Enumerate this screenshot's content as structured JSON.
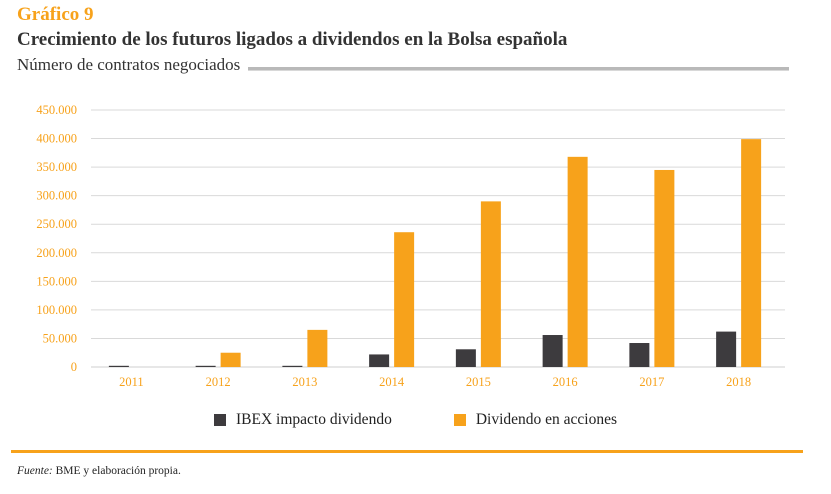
{
  "header": {
    "kicker": "Gráfico 9",
    "title": "Crecimiento de los futuros ligados a dividendos en la Bolsa española",
    "subtitle": "Número de contratos negociados"
  },
  "colors": {
    "accent": "#f7a21b",
    "ibex": "#3d3b3e",
    "acciones": "#f7a21b",
    "grid": "#d9d9d9",
    "text": "#333333"
  },
  "legend": {
    "items": [
      {
        "label": "IBEX impacto dividendo",
        "color": "#3d3b3e"
      },
      {
        "label": "Dividendo en acciones",
        "color": "#f7a21b"
      }
    ]
  },
  "footer": {
    "source_label": "Fuente:",
    "source_text": " BME y elaboración propia."
  },
  "chart_data": {
    "type": "bar",
    "title": "Crecimiento de los futuros ligados a dividendos en la Bolsa española",
    "subtitle": "Número de contratos negociados",
    "xlabel": "",
    "ylabel": "",
    "categories": [
      "2011",
      "2012",
      "2013",
      "2014",
      "2015",
      "2016",
      "2017",
      "2018"
    ],
    "series": [
      {
        "name": "IBEX impacto dividendo",
        "color": "#3d3b3e",
        "values": [
          2000,
          2000,
          2000,
          22000,
          31000,
          56000,
          42000,
          62000
        ]
      },
      {
        "name": "Dividendo en acciones",
        "color": "#f7a21b",
        "values": [
          0,
          25000,
          65000,
          236000,
          290000,
          368000,
          345000,
          399000
        ]
      }
    ],
    "ylim": [
      0,
      450000
    ],
    "yticks": [
      0,
      50000,
      100000,
      150000,
      200000,
      250000,
      300000,
      350000,
      400000,
      450000
    ],
    "ytick_labels": [
      "0",
      "50.000",
      "100.000",
      "150.000",
      "200.000",
      "250.000",
      "300.000",
      "350.000",
      "400.000",
      "450.000"
    ],
    "grid": true,
    "legend_position": "bottom-center"
  }
}
